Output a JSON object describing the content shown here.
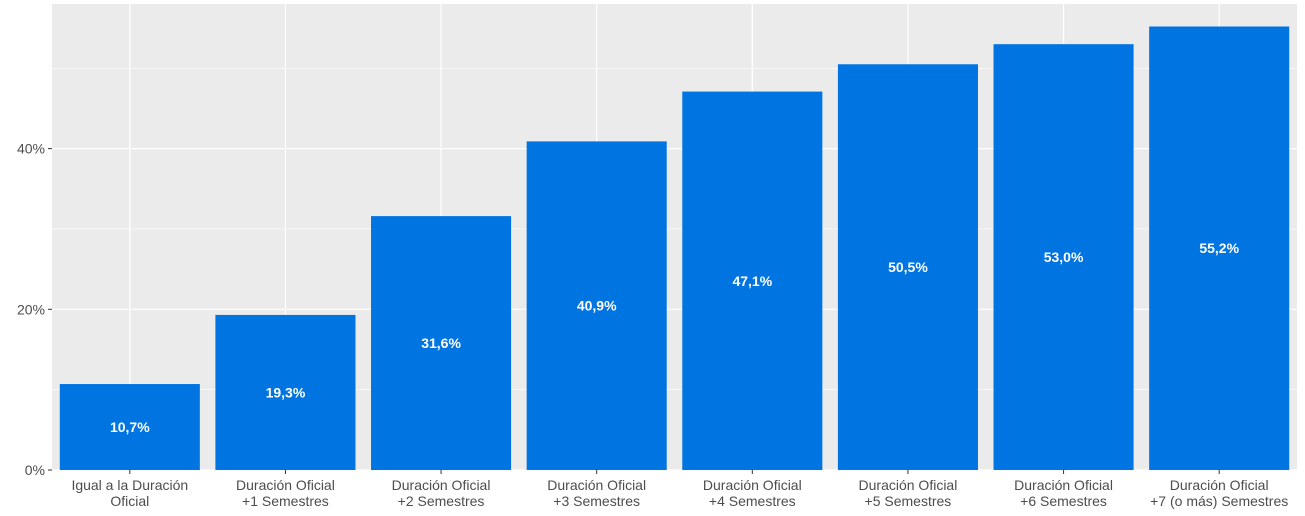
{
  "chart_data": {
    "type": "bar",
    "title": "",
    "xlabel": "",
    "ylabel": "",
    "categories": [
      [
        "Igual a la Duración",
        "Oficial"
      ],
      [
        "Duración Oficial",
        "+1 Semestres"
      ],
      [
        "Duración Oficial",
        "+2 Semestres"
      ],
      [
        "Duración Oficial",
        "+3 Semestres"
      ],
      [
        "Duración Oficial",
        "+4 Semestres"
      ],
      [
        "Duración Oficial",
        "+5 Semestres"
      ],
      [
        "Duración Oficial",
        "+6 Semestres"
      ],
      [
        "Duración Oficial",
        "+7 (o más) Semestres"
      ]
    ],
    "values": [
      10.7,
      19.3,
      31.6,
      40.9,
      47.1,
      50.5,
      53.0,
      55.2
    ],
    "data_labels": [
      "10,7%",
      "19,3%",
      "31,6%",
      "40,9%",
      "47,1%",
      "50,5%",
      "53,0%",
      "55,2%"
    ],
    "ylim": [
      0,
      58
    ],
    "yticks": [
      0,
      20,
      40
    ],
    "ytick_labels": [
      "0%",
      "20%",
      "40%"
    ],
    "grid": true,
    "colors": {
      "bar": "#0074E0",
      "panel": "#EBEBEB",
      "gridline": "#FFFFFF"
    }
  }
}
